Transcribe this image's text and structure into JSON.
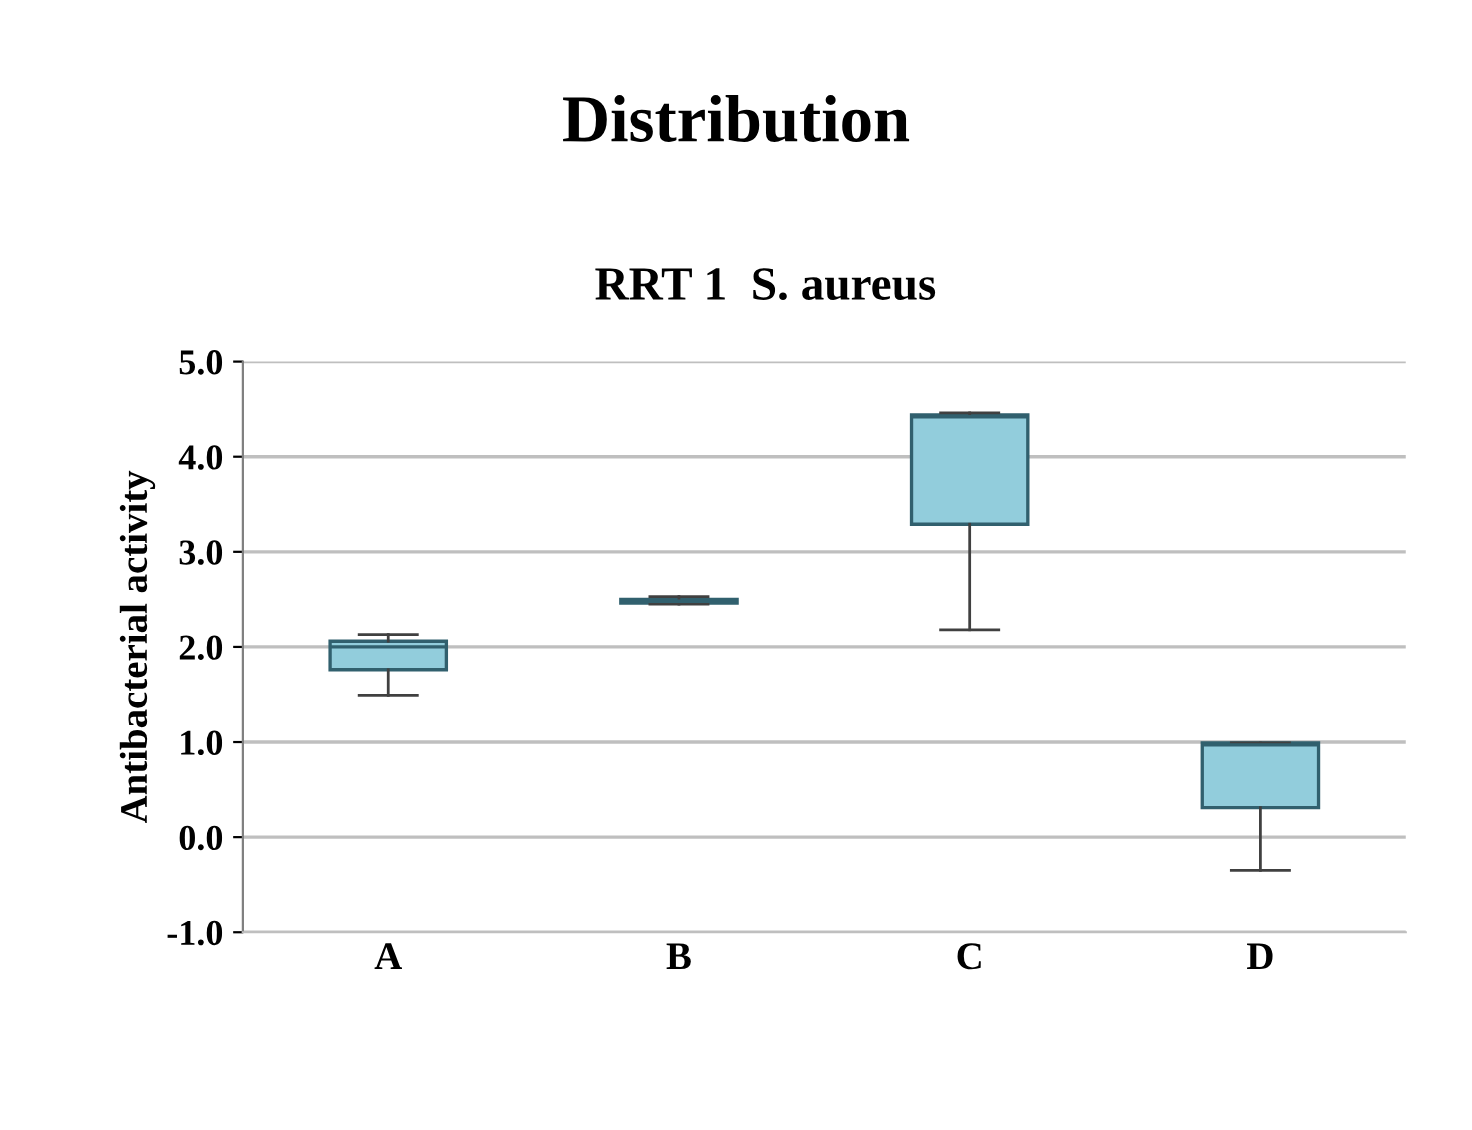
{
  "chart_data": {
    "type": "box",
    "title": "Distribution",
    "subtitle": "RRT 1  S. aureus",
    "ylabel": "Antibacterial activity",
    "categories": [
      "A",
      "B",
      "C",
      "D"
    ],
    "boxes": [
      {
        "low": 1.49,
        "q1": 1.76,
        "median": 2.0,
        "q3": 2.06,
        "high": 2.13
      },
      {
        "low": 2.45,
        "q1": 2.46,
        "median": 2.48,
        "q3": 2.5,
        "high": 2.53
      },
      {
        "low": 2.18,
        "q1": 3.29,
        "median": 4.42,
        "q3": 4.44,
        "high": 4.46
      },
      {
        "low": -0.35,
        "q1": 0.31,
        "median": 0.97,
        "q3": 0.99,
        "high": 0.99
      }
    ],
    "color": "#92cddc",
    "ylim": [
      -1.0,
      5.0
    ],
    "yticks": [
      {
        "value": -1,
        "label": "-1.0"
      },
      {
        "value": 0,
        "label": "0.0"
      },
      {
        "value": 1,
        "label": "1.0"
      },
      {
        "value": 2,
        "label": "2.0"
      },
      {
        "value": 3,
        "label": "3.0"
      },
      {
        "value": 4,
        "label": "4.0"
      },
      {
        "value": 5,
        "label": "5.0"
      }
    ],
    "grid": "y"
  }
}
